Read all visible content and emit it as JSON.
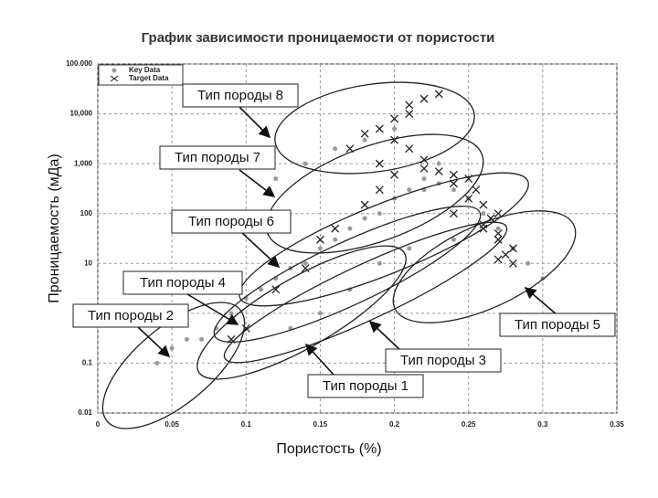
{
  "chart_data": {
    "type": "scatter",
    "title": "График зависимости проницаемости от пористости",
    "x_label": "Пористость (%)",
    "y_label": "Проницаемость (мДа)",
    "xlim": [
      0,
      0.35
    ],
    "xticks": [
      0,
      0.05,
      0.1,
      0.15,
      0.2,
      0.25,
      0.3,
      0.35
    ],
    "ylim": [
      0.01,
      100000
    ],
    "y_scale": "log",
    "yticks": [
      0.01,
      0.1,
      1,
      10,
      100,
      {
        "value": 1000,
        "label": "1,000"
      },
      {
        "value": 10000,
        "label": "10,000"
      },
      {
        "value": 100000,
        "label": "100.000"
      }
    ],
    "grid": true,
    "legend": "upper left",
    "series": [
      {
        "name": "Key Data",
        "color": "#9a9a9a",
        "marker": "dot",
        "x": [
          0.04,
          0.05,
          0.06,
          0.07,
          0.08,
          0.09,
          0.1,
          0.11,
          0.12,
          0.13,
          0.14,
          0.15,
          0.16,
          0.17,
          0.18,
          0.19,
          0.2,
          0.21,
          0.22,
          0.23,
          0.24,
          0.25,
          0.26,
          0.27,
          0.28,
          0.29,
          0.3,
          0.12,
          0.14,
          0.16,
          0.18,
          0.2,
          0.22,
          0.24,
          0.13,
          0.15,
          0.17,
          0.19,
          0.21,
          0.23
        ],
        "values": [
          0.1,
          0.2,
          0.3,
          0.3,
          0.5,
          1,
          2,
          3,
          5,
          8,
          10,
          20,
          30,
          50,
          80,
          100,
          200,
          300,
          500,
          400,
          300,
          200,
          100,
          50,
          20,
          10,
          5,
          500,
          1000,
          2000,
          3000,
          5000,
          300,
          30,
          0.5,
          1,
          3,
          10,
          20,
          1000
        ]
      },
      {
        "name": "Target Data",
        "color": "#222222",
        "marker": "cross",
        "x": [
          0.19,
          0.2,
          0.21,
          0.2,
          0.22,
          0.23,
          0.21,
          0.18,
          0.17,
          0.19,
          0.22,
          0.24,
          0.25,
          0.26,
          0.27,
          0.265,
          0.27,
          0.28,
          0.275,
          0.26,
          0.255,
          0.27,
          0.28,
          0.25,
          0.24,
          0.23,
          0.22,
          0.21,
          0.2,
          0.19,
          0.18,
          0.16,
          0.15,
          0.14,
          0.12,
          0.1,
          0.09,
          0.24,
          0.26,
          0.27
        ],
        "values": [
          5000,
          8000,
          15000,
          3000,
          20000,
          25000,
          10000,
          4000,
          2000,
          1000,
          800,
          600,
          200,
          150,
          100,
          80,
          40,
          20,
          15,
          60,
          300,
          12,
          10,
          500,
          400,
          700,
          1200,
          2000,
          600,
          300,
          150,
          50,
          30,
          8,
          3,
          0.5,
          0.3,
          100,
          50,
          30
        ]
      }
    ],
    "annotations": [
      "Тип породы 8",
      "Тип породы 7",
      "Тип породы 6",
      "Тип породы 4",
      "Тип породы 2",
      "Тип породы 5",
      "Тип породы 3",
      "Тип породы 1"
    ]
  }
}
